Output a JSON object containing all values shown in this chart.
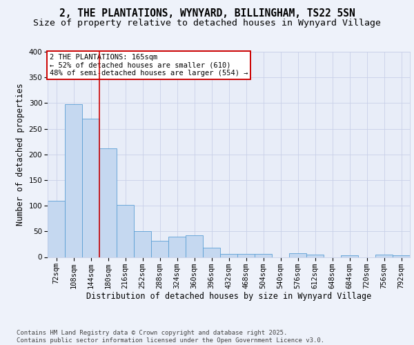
{
  "title_line1": "2, THE PLANTATIONS, WYNYARD, BILLINGHAM, TS22 5SN",
  "title_line2": "Size of property relative to detached houses in Wynyard Village",
  "xlabel": "Distribution of detached houses by size in Wynyard Village",
  "ylabel": "Number of detached properties",
  "annotation_line1": "2 THE PLANTATIONS: 165sqm",
  "annotation_line2": "← 52% of detached houses are smaller (610)",
  "annotation_line3": "48% of semi-detached houses are larger (554) →",
  "bar_color": "#c5d8f0",
  "bar_edge_color": "#5a9fd4",
  "vline_color": "#cc0000",
  "vline_x": 2.5,
  "categories": [
    "72sqm",
    "108sqm",
    "144sqm",
    "180sqm",
    "216sqm",
    "252sqm",
    "288sqm",
    "324sqm",
    "360sqm",
    "396sqm",
    "432sqm",
    "468sqm",
    "504sqm",
    "540sqm",
    "576sqm",
    "612sqm",
    "648sqm",
    "684sqm",
    "720sqm",
    "756sqm",
    "792sqm"
  ],
  "values": [
    110,
    298,
    270,
    212,
    101,
    51,
    31,
    40,
    42,
    18,
    6,
    6,
    6,
    0,
    7,
    5,
    0,
    4,
    0,
    5,
    4
  ],
  "ylim": [
    0,
    400
  ],
  "yticks": [
    0,
    50,
    100,
    150,
    200,
    250,
    300,
    350,
    400
  ],
  "background_color": "#eef2fa",
  "plot_bg_color": "#e8edf8",
  "grid_color": "#c8d0e8",
  "footer": "Contains HM Land Registry data © Crown copyright and database right 2025.\nContains public sector information licensed under the Open Government Licence v3.0.",
  "annotation_box_color": "#cc0000",
  "title_fontsize": 10.5,
  "subtitle_fontsize": 9.5,
  "axis_label_fontsize": 8.5,
  "tick_fontsize": 7.5,
  "annotation_fontsize": 7.5,
  "footer_fontsize": 6.5
}
